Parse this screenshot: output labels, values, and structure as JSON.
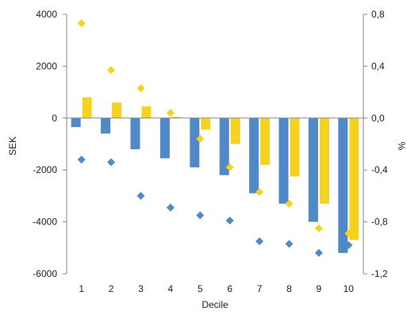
{
  "chart_data": {
    "type": "bar",
    "xlabel": "Decile",
    "ylabel_left": "SEK",
    "ylabel_right": "%",
    "categories": [
      "1",
      "2",
      "3",
      "4",
      "5",
      "6",
      "7",
      "8",
      "9",
      "10"
    ],
    "y_left_range": [
      -6000,
      4000
    ],
    "y_left_ticks": [
      "4000",
      "2000",
      "0",
      "-2000",
      "-4000",
      "-6000"
    ],
    "y_right_range": [
      -1.2,
      0.8
    ],
    "y_right_ticks": [
      "0,8",
      "0,4",
      "0,0",
      "-0,4",
      "-0,8",
      "-1,2"
    ],
    "grid": false,
    "legend": "none",
    "series": [
      {
        "kind": "bar",
        "axis": "left",
        "color": "#4f89c7",
        "values": [
          -350,
          -600,
          -1200,
          -1550,
          -1900,
          -2200,
          -2900,
          -3300,
          -4000,
          -5200
        ]
      },
      {
        "kind": "bar",
        "axis": "left",
        "color": "#f5d21f",
        "values": [
          800,
          600,
          450,
          50,
          -450,
          -1000,
          -1800,
          -2250,
          -3300,
          -4700
        ]
      },
      {
        "kind": "scatter",
        "marker": "diamond",
        "axis": "right",
        "color": "#4f89c7",
        "values": [
          -0.32,
          -0.34,
          -0.6,
          -0.69,
          -0.75,
          -0.79,
          -0.95,
          -0.97,
          -1.04,
          -0.98
        ]
      },
      {
        "kind": "scatter",
        "marker": "diamond",
        "axis": "right",
        "color": "#f5d21f",
        "values": [
          0.73,
          0.37,
          0.23,
          0.04,
          -0.16,
          -0.38,
          -0.57,
          -0.66,
          -0.85,
          -0.89
        ]
      }
    ]
  }
}
